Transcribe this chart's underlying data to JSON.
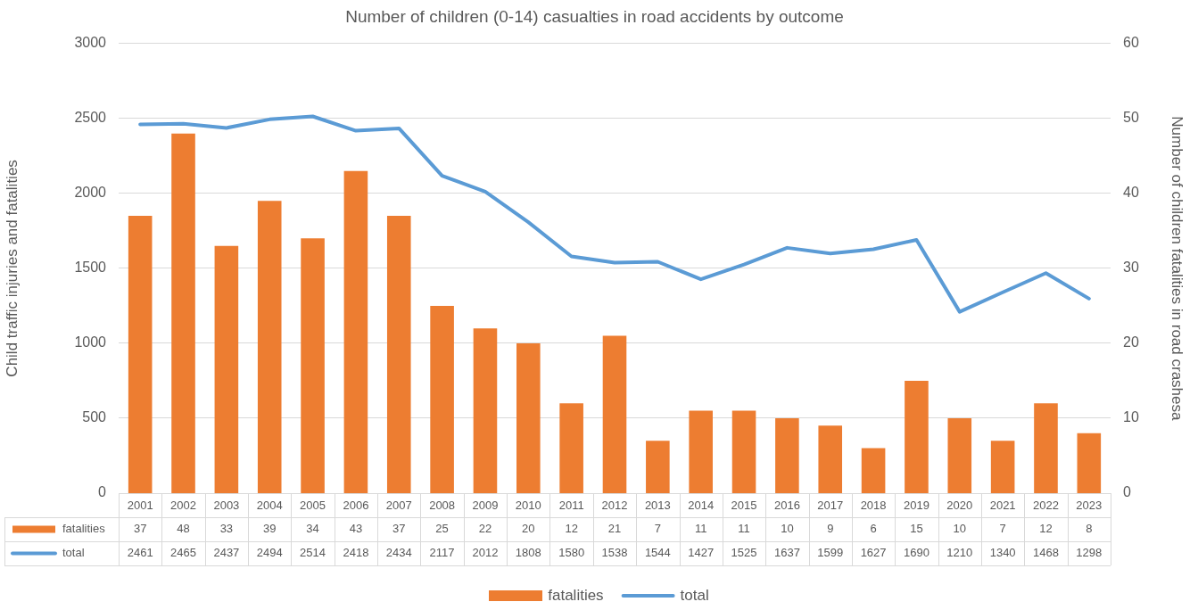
{
  "chart_data": {
    "type": "bar",
    "title": "Number of children (0-14) casualties in road accidents by outcome",
    "ylabel": "Child traffic injuries and fatalities",
    "y2label": "Number of children fatalities in road crashesa",
    "categories": [
      "2001",
      "2002",
      "2003",
      "2004",
      "2005",
      "2006",
      "2007",
      "2008",
      "2009",
      "2010",
      "2011",
      "2012",
      "2013",
      "2014",
      "2015",
      "2016",
      "2017",
      "2018",
      "2019",
      "2020",
      "2021",
      "2022",
      "2023"
    ],
    "series": [
      {
        "name": "fatalities",
        "type": "bar",
        "axis": "y2",
        "color": "#ed7d31",
        "values": [
          37,
          48,
          33,
          39,
          34,
          43,
          37,
          25,
          22,
          20,
          12,
          21,
          7,
          11,
          11,
          10,
          9,
          6,
          15,
          10,
          7,
          12,
          8
        ]
      },
      {
        "name": "total",
        "type": "line",
        "color": "#5b9bd5",
        "values": [
          2461,
          2465,
          2437,
          2494,
          2514,
          2418,
          2434,
          2117,
          2012,
          1808,
          1580,
          1538,
          1544,
          1427,
          1525,
          1637,
          1599,
          1627,
          1690,
          1210,
          1340,
          1468,
          1298
        ]
      }
    ],
    "ylim": [
      0,
      3000
    ],
    "yticks": [
      0,
      500,
      1000,
      1500,
      2000,
      2500,
      3000
    ],
    "y2lim": [
      0,
      60
    ],
    "y2ticks": [
      0,
      10,
      20,
      30,
      40,
      50,
      60
    ],
    "grid": "y",
    "legend": "bottom",
    "data_labels": true
  }
}
